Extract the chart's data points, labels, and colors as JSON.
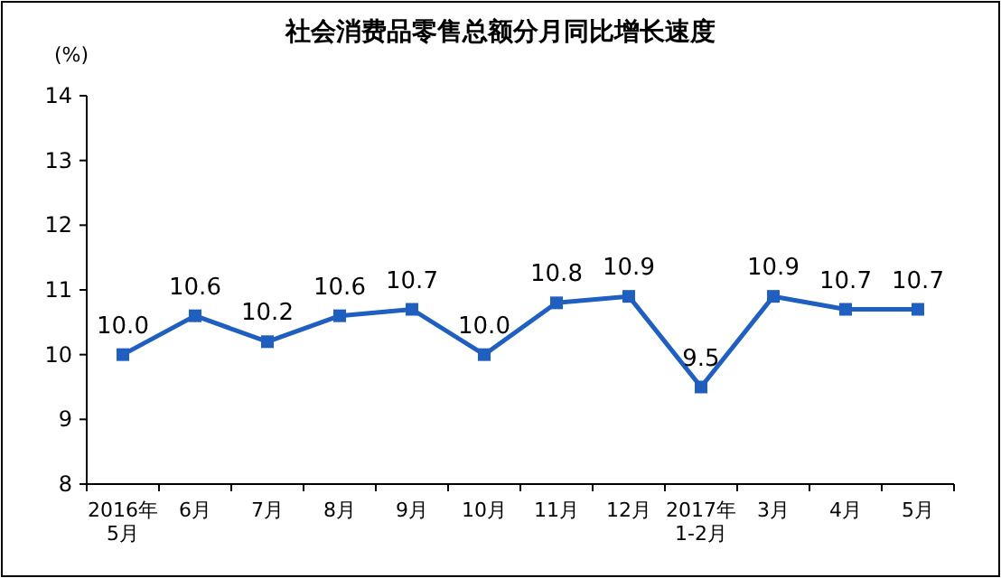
{
  "chart_data": {
    "type": "line",
    "title": "社会消费品零售总额分月同比增长速度",
    "ylabel": "(%)",
    "categories": [
      "2016年\n5月",
      "6月",
      "7月",
      "8月",
      "9月",
      "10月",
      "11月",
      "12月",
      "2017年\n1-2月",
      "3月",
      "4月",
      "5月"
    ],
    "values": [
      10.0,
      10.6,
      10.2,
      10.6,
      10.7,
      10.0,
      10.8,
      10.9,
      9.5,
      10.9,
      10.7,
      10.7
    ],
    "value_labels": [
      "10.0",
      "10.6",
      "10.2",
      "10.6",
      "10.7",
      "10.0",
      "10.8",
      "10.9",
      "9.5",
      "10.9",
      "10.7",
      "10.7"
    ],
    "color": "#1f5fbf",
    "ylim": [
      8,
      14
    ],
    "yticks": [
      8,
      9,
      10,
      11,
      12,
      13,
      14
    ],
    "marker": "square",
    "line_style": "solid",
    "grid": false
  }
}
